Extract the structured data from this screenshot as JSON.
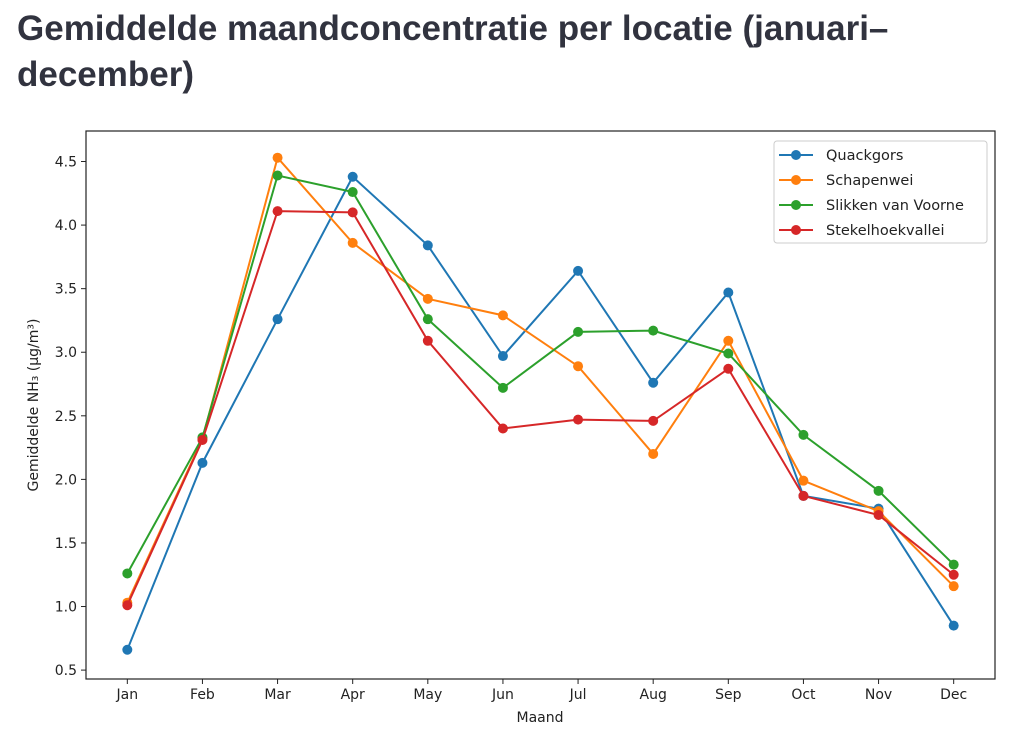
{
  "page": {
    "title": "Gemiddelde maandconcentratie per locatie (januari–december)"
  },
  "chart_data": {
    "type": "line",
    "title": "Gemiddelde maandconcentratie per locatie (januari–december)",
    "xlabel": "Maand",
    "ylabel": "Gemiddelde NH₃ (µg/m³)",
    "categories": [
      "Jan",
      "Feb",
      "Mar",
      "Apr",
      "May",
      "Jun",
      "Jul",
      "Aug",
      "Sep",
      "Oct",
      "Nov",
      "Dec"
    ],
    "ylim": [
      0.43,
      4.74
    ],
    "yticks": [
      "0.5",
      "1.0",
      "1.5",
      "2.0",
      "2.5",
      "3.0",
      "3.5",
      "4.0",
      "4.5"
    ],
    "grid": false,
    "legend_position": "top-right",
    "series": [
      {
        "name": "Quackgors",
        "color": "#1f77b4",
        "values": [
          0.66,
          2.13,
          3.26,
          4.38,
          3.84,
          2.97,
          3.64,
          2.76,
          3.47,
          1.87,
          1.77,
          0.85
        ]
      },
      {
        "name": "Schapenwei",
        "color": "#ff7f0e",
        "values": [
          1.03,
          2.32,
          4.53,
          3.86,
          3.42,
          3.29,
          2.89,
          2.2,
          3.09,
          1.99,
          1.75,
          1.16
        ]
      },
      {
        "name": "Slikken van Voorne",
        "color": "#2ca02c",
        "values": [
          1.26,
          2.33,
          4.39,
          4.26,
          3.26,
          2.72,
          3.16,
          3.17,
          2.99,
          2.35,
          1.91,
          1.33
        ]
      },
      {
        "name": "Stekelhoekvallei",
        "color": "#d62728",
        "values": [
          1.01,
          2.31,
          4.11,
          4.1,
          3.09,
          2.4,
          2.47,
          2.46,
          2.87,
          1.87,
          1.72,
          1.25
        ]
      }
    ]
  }
}
